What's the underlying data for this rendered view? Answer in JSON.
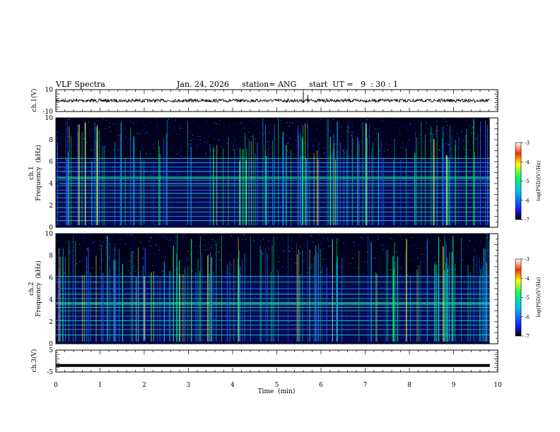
{
  "chart_data": {
    "type": "heatmap",
    "title": "VLF Spectra",
    "date": "Jan. 24, 2026",
    "station": "station= ANG",
    "start_time": "start  UT =   9  : 30 : 1",
    "xlabel": "Time  (min)",
    "x_ticks": [
      "0",
      "1",
      "2",
      "3",
      "4",
      "5",
      "6",
      "7",
      "8",
      "9",
      "10"
    ],
    "xlim": [
      0,
      10
    ],
    "data_end_min": 9.82,
    "panels": [
      {
        "id": "ch1-waveform",
        "type": "line",
        "ylabel": "ch.1(V)",
        "ylim": [
          -10,
          10
        ],
        "y_ticks": [
          "10",
          "-10"
        ],
        "baseline": 0,
        "spikes_min": [
          5.6,
          5.7
        ]
      },
      {
        "id": "ch1-spectrogram",
        "type": "heatmap",
        "ylabel_line1": "ch.1",
        "ylabel_line2": "Frequency  (kHz)",
        "ylim": [
          0,
          10
        ],
        "y_ticks": [
          "0",
          "2",
          "4",
          "6",
          "8",
          "10"
        ],
        "steady_lines_khz": [
          0.6,
          1.0,
          1.4,
          1.8,
          2.3,
          2.7,
          3.1,
          3.4,
          3.8,
          4.0,
          4.3,
          4.6,
          5.1,
          5.5,
          5.9,
          6.3
        ],
        "bright_band_khz": [
          4.4,
          4.6
        ],
        "colorbar": {
          "label": "log(PSD)(V²/Hz)",
          "ticks": [
            "-3",
            "-4",
            "-5",
            "-6",
            "-7"
          ],
          "range": [
            -7,
            -3
          ]
        }
      },
      {
        "id": "ch2-spectrogram",
        "type": "heatmap",
        "ylabel_line1": "ch.2",
        "ylabel_line2": "Frequency  (kHz)",
        "ylim": [
          0,
          10
        ],
        "y_ticks": [
          "0",
          "2",
          "4",
          "6",
          "8",
          "10"
        ],
        "steady_lines_khz": [
          0.8,
          1.3,
          1.7,
          2.1,
          2.5,
          3.0,
          3.3,
          3.7,
          4.1,
          4.5,
          5.0,
          5.6,
          6.1
        ],
        "bright_band_khz": [
          3.5,
          3.8
        ],
        "colorbar": {
          "label": "log(PSD)(V²/Hz)",
          "ticks": [
            "-3",
            "-4",
            "-5",
            "-6",
            "-7"
          ],
          "range": [
            -7,
            -3
          ]
        }
      },
      {
        "id": "ch3-waveform",
        "type": "line",
        "ylabel": "ch.3(V)",
        "ylim": [
          -5,
          5
        ],
        "y_ticks": [
          "5",
          "-5"
        ],
        "level": -2
      }
    ],
    "colors": {
      "background": "#ffffff",
      "axes": "#000000",
      "colormap": [
        "#000000",
        "#1515ff",
        "#00b8ff",
        "#00ff66",
        "#ffff00",
        "#ff7f00",
        "#ff0000",
        "#ffffff"
      ]
    }
  }
}
